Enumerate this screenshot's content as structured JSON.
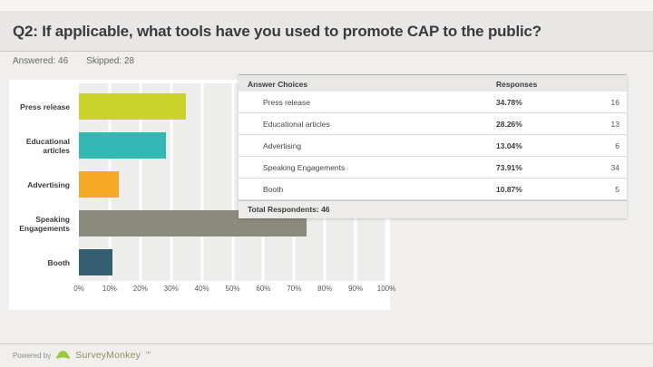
{
  "header": {
    "title": "Q2: If applicable, what tools have you used to promote CAP to the public?",
    "answered": "Answered: 46",
    "skipped": "Skipped: 28"
  },
  "chart_data": {
    "type": "bar",
    "orientation": "horizontal",
    "title": "",
    "xlabel": "",
    "ylabel": "",
    "categories": [
      "Press release",
      "Educational articles",
      "Advertising",
      "Speaking Engagements",
      "Booth"
    ],
    "values": [
      34.78,
      28.26,
      13.04,
      73.91,
      10.87
    ],
    "counts": [
      16,
      13,
      6,
      34,
      5
    ],
    "colors": [
      "#ccd22c",
      "#33b8b4",
      "#f4a927",
      "#8b8b7d",
      "#335f70"
    ],
    "xlim": [
      0,
      100
    ],
    "x_ticks": [
      "0%",
      "10%",
      "20%",
      "30%",
      "40%",
      "50%",
      "60%",
      "70%",
      "80%",
      "90%",
      "100%"
    ],
    "grid": true,
    "legend": false
  },
  "table": {
    "headers": [
      "Answer Choices",
      "Responses"
    ],
    "rows": [
      {
        "choice": "Press release",
        "percent": "34.78%",
        "count": "16"
      },
      {
        "choice": "Educational articles",
        "percent": "28.26%",
        "count": "13"
      },
      {
        "choice": "Advertising",
        "percent": "13.04%",
        "count": "6"
      },
      {
        "choice": "Speaking Engagements",
        "percent": "73.91%",
        "count": "34"
      },
      {
        "choice": "Booth",
        "percent": "10.87%",
        "count": "5"
      }
    ],
    "total_label": "Total Respondents: 46"
  },
  "footer": {
    "powered_by": "Powered by",
    "brand": "SurveyMonkey",
    "trademark": "™",
    "logo_icon": "surveymonkey-logo"
  }
}
